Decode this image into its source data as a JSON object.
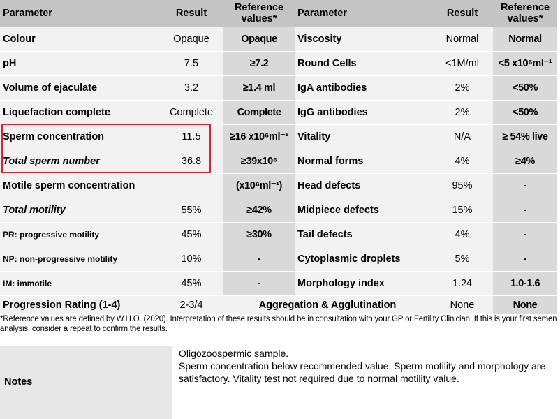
{
  "headers": {
    "parameter": "Parameter",
    "result": "Result",
    "reference": "Reference values*",
    "parameter2": "Parameter",
    "result2": "Result",
    "reference2": "Reference values*"
  },
  "rows": [
    {
      "p1": "Colour",
      "r1": "Opaque",
      "ref1": "Opaque",
      "p2": "Viscosity",
      "r2": "Normal",
      "ref2": "Normal"
    },
    {
      "p1": "pH",
      "r1": "7.5",
      "ref1": "≥7.2",
      "p2": "Round Cells",
      "r2": "<1M/ml",
      "ref2": "<5 x10⁶ml⁻¹"
    },
    {
      "p1": "Volume of ejaculate",
      "r1": "3.2",
      "ref1": "≥1.4 ml",
      "p2": "IgA antibodies",
      "r2": "2%",
      "ref2": "<50%"
    },
    {
      "p1": "Liquefaction complete",
      "r1": "Complete",
      "ref1": "Complete",
      "p2": "IgG antibodies",
      "r2": "2%",
      "ref2": "<50%"
    },
    {
      "p1": "Sperm concentration",
      "r1": "11.5",
      "ref1": "≥16 x10⁶ml⁻¹",
      "p2": "Vitality",
      "r2": "N/A",
      "ref2": "≥ 54% live"
    },
    {
      "p1": "Total sperm number",
      "r1": "36.8",
      "ref1": "≥39x10⁶",
      "p2": "Normal forms",
      "r2": "4%",
      "ref2": "≥4%"
    },
    {
      "p1": "Motile sperm concentration",
      "r1": "",
      "ref1": "(x10⁶ml⁻¹)",
      "p2": "Head defects",
      "r2": "95%",
      "ref2": "-"
    },
    {
      "p1": "Total motility",
      "r1": "55%",
      "ref1": "≥42%",
      "p2": "Midpiece defects",
      "r2": "15%",
      "ref2": "-"
    },
    {
      "p1": "PR: progressive motility",
      "r1": "45%",
      "ref1": "≥30%",
      "p2": "Tail defects",
      "r2": "4%",
      "ref2": "-"
    },
    {
      "p1": "NP: non-progressive motility",
      "r1": "10%",
      "ref1": "-",
      "p2": "Cytoplasmic droplets",
      "r2": "5%",
      "ref2": "-"
    },
    {
      "p1": "IM: immotile",
      "r1": "45%",
      "ref1": "-",
      "p2": "Morphology index",
      "r2": "1.24",
      "ref2": "1.0-1.6"
    }
  ],
  "last_row": {
    "p1": "Progression Rating (1-4)",
    "r1": "2-3/4",
    "p2": "Aggregation & Agglutination",
    "r2": "None",
    "ref2": "None"
  },
  "footnote": "*Reference values are defined by W.H.O. (2020).  Interpretation of these results should be in consultation with your GP or Fertility Clinician. If this is your first semen analysis, consider a repeat to confirm the results.",
  "notes": {
    "label": "Notes",
    "line1": "Oligozoospermic sample.",
    "line2": "Sperm concentration below recommended value.  Sperm motility and morphology are satisfactory.  Vitality test not required due to normal motility value."
  },
  "colors": {
    "header_bg": "#c4c4c4",
    "row_bg": "#f2f2f2",
    "ref_bg": "#d9d9d9",
    "highlight_border": "#e0202a"
  }
}
